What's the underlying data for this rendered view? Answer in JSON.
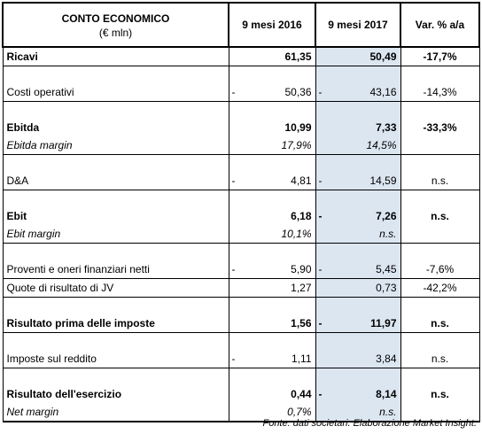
{
  "header": {
    "title": "CONTO ECONOMICO",
    "unit": "(€ mln)",
    "col_2016": "9 mesi 2016",
    "col_2017": "9 mesi 2017",
    "col_var": "Var. % a/a"
  },
  "rows": {
    "ricavi": {
      "label": "Ricavi",
      "v2016": "61,35",
      "v2017": "50,49",
      "var": "-17,7%"
    },
    "costi": {
      "label": "Costi operativi",
      "v2016": "50,36",
      "v2017": "43,16",
      "var": "-14,3%"
    },
    "ebitda": {
      "label": "Ebitda",
      "v2016": "10,99",
      "v2017": "7,33",
      "var": "-33,3%"
    },
    "ebitda_margin": {
      "label": "Ebitda margin",
      "v2016": "17,9%",
      "v2017": "14,5%",
      "var": ""
    },
    "da": {
      "label": "D&A",
      "v2016": "4,81",
      "v2017": "14,59",
      "var": "n.s."
    },
    "ebit": {
      "label": "Ebit",
      "v2016": "6,18",
      "v2017": "7,26",
      "var": "n.s."
    },
    "ebit_margin": {
      "label": "Ebit margin",
      "v2016": "10,1%",
      "v2017": "n.s.",
      "var": ""
    },
    "proventi": {
      "label": "Proventi e oneri finanziari netti",
      "v2016": "5,90",
      "v2017": "5,45",
      "var": "-7,6%"
    },
    "quote": {
      "label": "Quote di risultato di JV",
      "v2016": "1,27",
      "v2017": "0,73",
      "var": "-42,2%"
    },
    "ante_imposte": {
      "label": "Risultato prima delle imposte",
      "v2016": "1,56",
      "v2017": "11,97",
      "var": "n.s."
    },
    "imposte": {
      "label": "Imposte sul reddito",
      "v2016": "1,11",
      "v2017": "3,84",
      "var": "n.s."
    },
    "esercizio": {
      "label": "Risultato dell'esercizio",
      "v2016": "0,44",
      "v2017": "8,14",
      "var": "n.s."
    },
    "net_margin": {
      "label": "Net margin",
      "v2016": "0,7%",
      "v2017": "n.s.",
      "var": ""
    }
  },
  "dash": "-",
  "source": "Fonte: dati societari. Elaborazione Market Insight.",
  "colors": {
    "highlight_column": "#dce6f1",
    "border": "#000000"
  }
}
